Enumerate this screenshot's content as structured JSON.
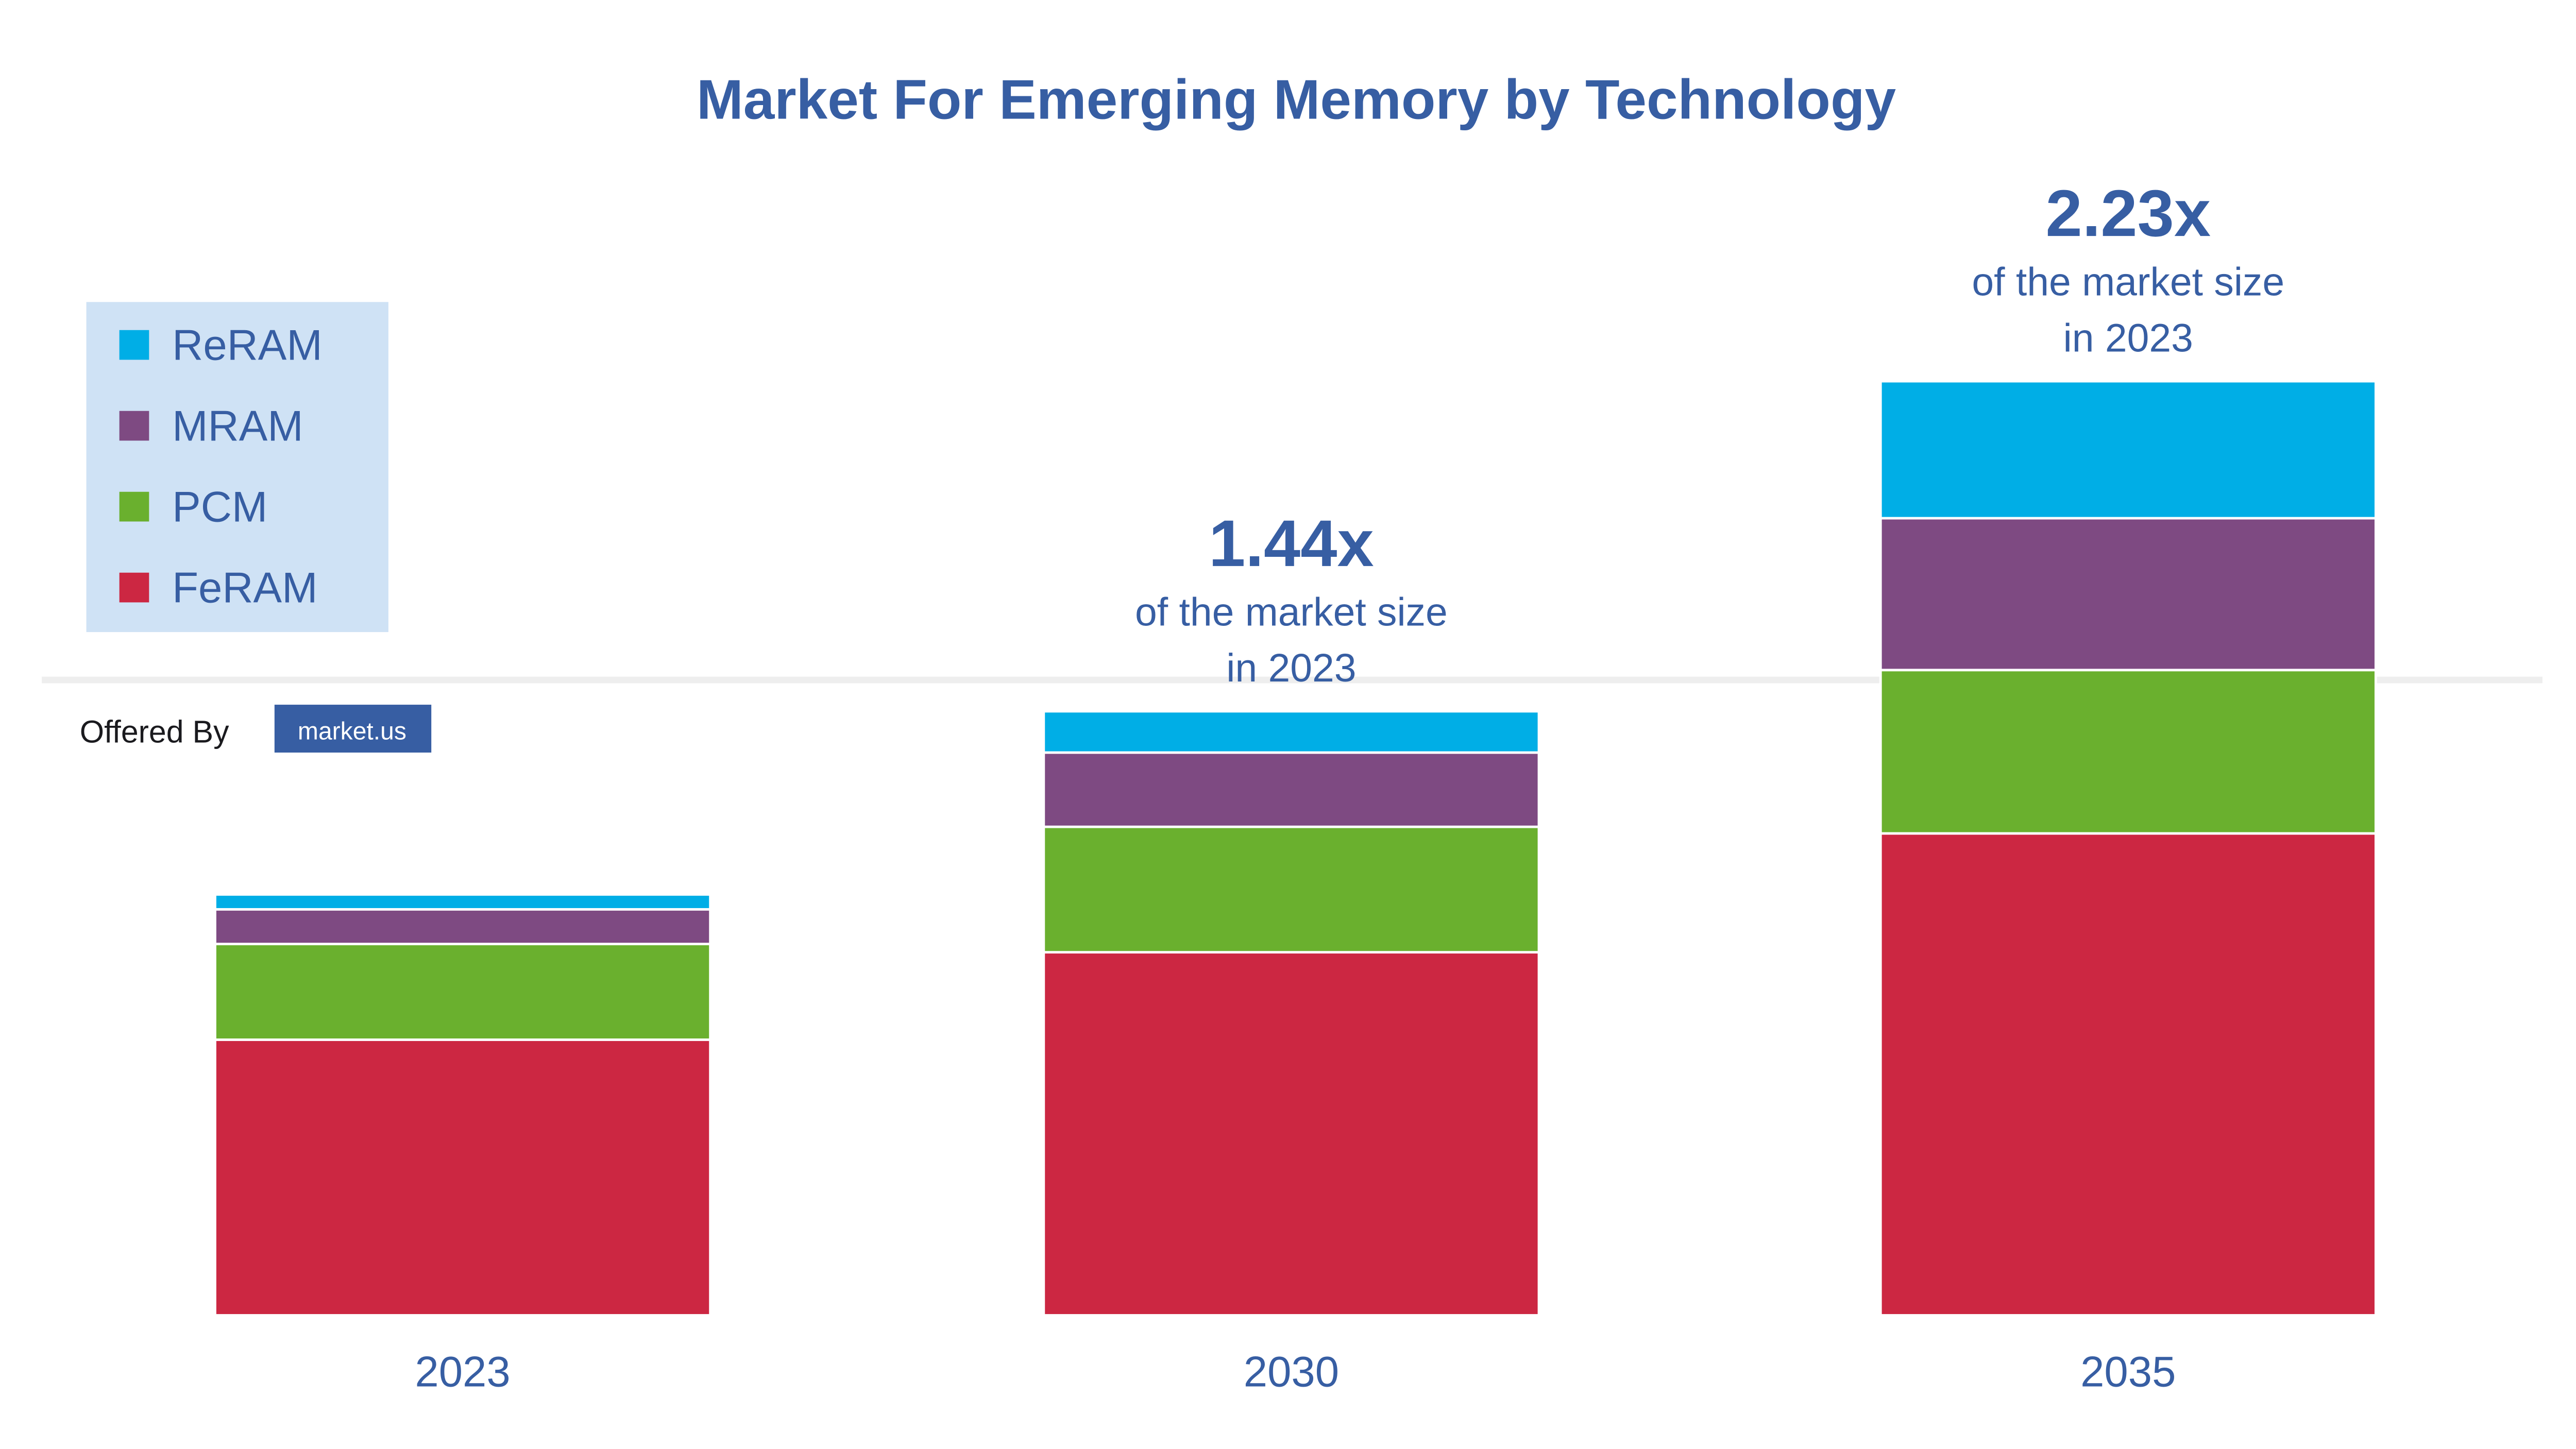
{
  "chart_data": {
    "type": "bar",
    "stacked": true,
    "title": "Market For Emerging Memory by Technology",
    "categories": [
      "2023",
      "2030",
      "2035"
    ],
    "series": [
      {
        "name": "FeRAM",
        "color": "#cc2742",
        "values": [
          167,
          220,
          292
        ]
      },
      {
        "name": "PCM",
        "color": "#6ab02e",
        "values": [
          58,
          76,
          99
        ]
      },
      {
        "name": "MRAM",
        "color": "#7e4a82",
        "values": [
          21,
          45,
          92
        ]
      },
      {
        "name": "ReRAM",
        "color": "#00aee6",
        "values": [
          9,
          25,
          83
        ]
      }
    ],
    "legend_order": [
      "ReRAM",
      "MRAM",
      "PCM",
      "FeRAM"
    ],
    "legend_placement": "top-left",
    "grid": false,
    "y_axis_shown": false,
    "annotations": [
      {
        "category": "2030",
        "value": "1.44x",
        "text": "of the market size",
        "subtext": "in 2023"
      },
      {
        "category": "2035",
        "value": "2.23x",
        "text": "of the market size",
        "subtext": "in 2023"
      }
    ]
  },
  "branding": {
    "offered_by": "Offered By",
    "logo_text": "market.us"
  },
  "colors": {
    "text": "#375ea3",
    "legend_bg": "#cfe2f5",
    "divider": "#eeeeee"
  }
}
